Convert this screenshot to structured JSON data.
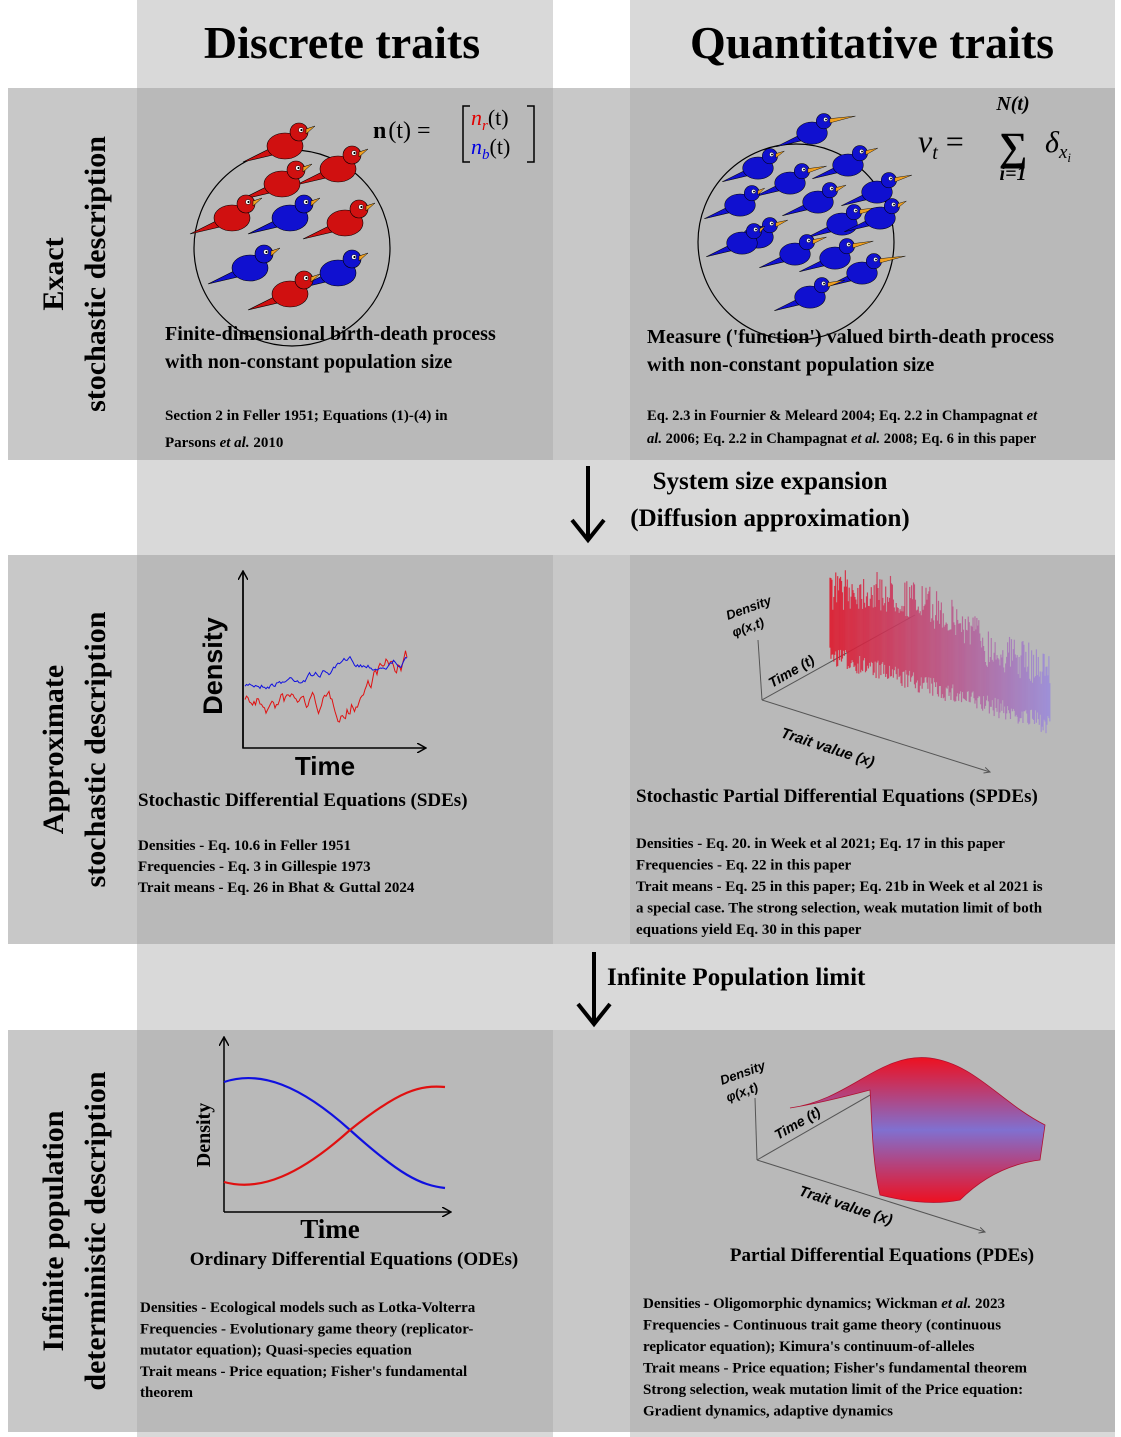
{
  "columns": [
    "Discrete traits",
    "Quantitative traits"
  ],
  "rows": [
    {
      "label": [
        "Exact",
        "stochastic description"
      ],
      "cells": [
        {
          "equation": {
            "lhs": "n",
            "lhs_rest": "(t) =",
            "top": {
              "base": "n",
              "sub": "r",
              "rest": "(t)",
              "color": "#e00000"
            },
            "bottom": {
              "base": "n",
              "sub": "b",
              "rest": "(t)",
              "color": "#0000e0"
            }
          },
          "heading": [
            "Finite-dimensional birth-death process",
            "with non-constant population size"
          ],
          "refs": [
            "Section 2 in Feller 1951; Equations (1)-(4) in",
            [
              "Parsons ",
              {
                "em": "et al."
              },
              " 2010"
            ]
          ]
        },
        {
          "equation": {
            "lhs": "ν",
            "lhs_sub": "t",
            "eq": "=",
            "sum": "∑",
            "upper": "N(t)",
            "lower": "i=1",
            "term": "δ",
            "term_sub": "x",
            "term_subsub": "i"
          },
          "heading": [
            "Measure ('function') valued birth-death process",
            "with non-constant population size"
          ],
          "refs": [
            [
              "Eq. 2.3 in Fournier & Meleard 2004; Eq. 2.2 in Champagnat ",
              {
                "em": "et"
              }
            ],
            [
              {
                "em": "al."
              },
              " 2006; Eq. 2.2 in Champagnat ",
              {
                "em": "et al."
              },
              " 2008; Eq. 6 in this paper"
            ]
          ]
        }
      ]
    },
    {
      "label": [
        "Approximate",
        "stochastic description"
      ],
      "cells": [
        {
          "plot": {
            "y_label": "Density",
            "x_label": "Time"
          },
          "heading": [
            "Stochastic Differential Equations (SDEs)"
          ],
          "refs": [
            "Densities - Eq. 10.6 in Feller 1951",
            "Frequencies - Eq.  3 in Gillespie 1973",
            "Trait means -  Eq. 26 in Bhat & Guttal 2024"
          ]
        },
        {
          "plot": {
            "z_label": [
              "Density",
              "φ(x,t)"
            ],
            "t_label": "Time (t)",
            "x_label": "Trait value (x)"
          },
          "heading": [
            "Stochastic Partial Differential Equations (SPDEs)"
          ],
          "refs": [
            "Densities - Eq. 20. in Week et al 2021; Eq. 17 in this paper",
            "Frequencies - Eq. 22 in this paper",
            "Trait means - Eq. 25 in this paper; Eq. 21b in Week et al 2021 is",
            "a special case. The strong selection, weak mutation limit of both",
            "equations yield Eq. 30 in this paper"
          ]
        }
      ]
    },
    {
      "label": [
        "Infinite population",
        "deterministic description"
      ],
      "cells": [
        {
          "plot": {
            "y_label": "Density",
            "x_label": "Time"
          },
          "heading": [
            "Ordinary Differential Equations (ODEs)"
          ],
          "refs": [
            "Densities - Ecological models such as Lotka-Volterra",
            "Frequencies - Evolutionary game theory (replicator-",
            "mutator equation); Quasi-species equation",
            "Trait means - Price equation; Fisher's fundamental",
            "theorem"
          ]
        },
        {
          "plot": {
            "z_label": [
              "Density",
              "φ(x,t)"
            ],
            "t_label": "Time (t)",
            "x_label": "Trait value (x)"
          },
          "heading": [
            "Partial Differential Equations (PDEs)"
          ],
          "refs": [
            [
              "Densities - Oligomorphic dynamics; Wickman ",
              {
                "em": "et al."
              },
              " 2023"
            ],
            "Frequencies - Continuous trait game theory (continuous",
            "replicator equation); Kimura's continuum-of-alleles",
            "Trait means - Price equation; Fisher's fundamental theorem",
            "Strong selection, weak mutation limit of the Price equation:",
            "Gradient dynamics, adaptive dynamics"
          ]
        }
      ]
    }
  ],
  "transitions": [
    {
      "label": [
        "System size expansion",
        "(Diffusion approximation)"
      ]
    },
    {
      "label": [
        "Infinite Population limit"
      ]
    }
  ]
}
